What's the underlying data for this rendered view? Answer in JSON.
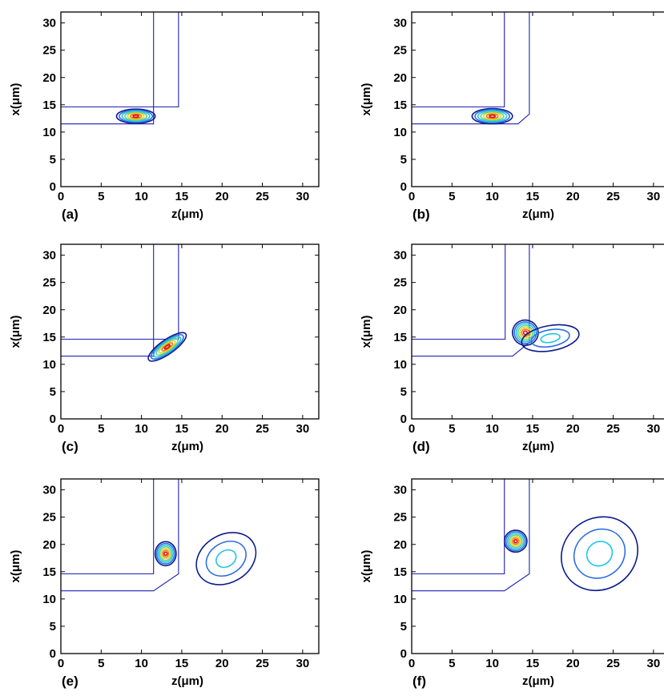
{
  "chart_data": {
    "type": "contour",
    "colors": {
      "guide": "#1f1fb0",
      "levels": [
        "#0b1a8c",
        "#2e6fe0",
        "#1fc6e6",
        "#5fd08a",
        "#e6d22a",
        "#f07818",
        "#d81010",
        "#7a0000"
      ]
    },
    "shared": {
      "xlabel": "z(μm)",
      "ylabel": "x(μm)",
      "xlim": [
        0,
        32
      ],
      "ylim": [
        0,
        32
      ],
      "xticks": [
        "0",
        "5",
        "10",
        "15",
        "20",
        "25",
        "30"
      ],
      "yticks": [
        "0",
        "5",
        "10",
        "15",
        "20",
        "25",
        "30"
      ]
    },
    "panels": [
      {
        "label": "(a)",
        "guide_inner": [
          [
            0,
            11.5
          ],
          [
            11.5,
            11.5
          ],
          [
            11.5,
            32
          ]
        ],
        "guide_outer": [
          [
            0,
            14.6
          ],
          [
            14.6,
            14.6
          ],
          [
            14.6,
            32
          ]
        ],
        "blobs": [
          {
            "center": [
              9.3,
              12.9
            ],
            "rx": 2.4,
            "ry": 1.3,
            "rot": 0,
            "levels": 7
          }
        ]
      },
      {
        "label": "(b)",
        "guide_inner": [
          [
            0,
            11.5
          ],
          [
            13.2,
            11.5
          ],
          [
            14.6,
            13.3
          ],
          [
            14.6,
            32
          ]
        ],
        "guide_outer": [
          [
            0,
            14.6
          ],
          [
            11.5,
            14.6
          ],
          [
            11.5,
            32
          ]
        ],
        "blobs": [
          {
            "center": [
              10.0,
              12.9
            ],
            "rx": 2.5,
            "ry": 1.4,
            "rot": 0,
            "levels": 7
          }
        ]
      },
      {
        "label": "(c)",
        "guide_inner": [
          [
            0,
            11.5
          ],
          [
            11.5,
            11.5
          ],
          [
            11.5,
            32
          ]
        ],
        "guide_outer": [
          [
            0,
            14.6
          ],
          [
            14.6,
            14.6
          ],
          [
            14.6,
            32
          ]
        ],
        "blobs": [
          {
            "center": [
              13.2,
              13.2
            ],
            "rx": 2.8,
            "ry": 1.3,
            "rot": -35,
            "levels": 7
          }
        ]
      },
      {
        "label": "(d)",
        "guide_inner": [
          [
            0,
            11.5
          ],
          [
            12.5,
            11.5
          ],
          [
            14.6,
            14.0
          ],
          [
            14.6,
            32
          ]
        ],
        "guide_outer": [
          [
            0,
            14.6
          ],
          [
            11.6,
            14.6
          ],
          [
            11.6,
            32
          ]
        ],
        "blobs": [
          {
            "center": [
              14.1,
              15.8
            ],
            "rx": 1.6,
            "ry": 2.3,
            "rot": 20,
            "levels": 7
          },
          {
            "center": [
              17.2,
              14.8
            ],
            "rx": 3.6,
            "ry": 2.3,
            "rot": -10,
            "levels": 3
          }
        ]
      },
      {
        "label": "(e)",
        "guide_inner": [
          [
            0,
            11.5
          ],
          [
            11.5,
            11.5
          ],
          [
            14.6,
            14.6
          ],
          [
            14.6,
            32
          ]
        ],
        "guide_outer": [
          [
            0,
            14.6
          ],
          [
            11.5,
            14.6
          ],
          [
            11.5,
            32
          ]
        ],
        "blobs": [
          {
            "center": [
              13.0,
              18.3
            ],
            "rx": 1.3,
            "ry": 2.2,
            "rot": 0,
            "levels": 7
          },
          {
            "center": [
              20.5,
              17.4
            ],
            "rx": 3.9,
            "ry": 4.4,
            "rot": -30,
            "levels": 3
          }
        ]
      },
      {
        "label": "(f)",
        "guide_inner": [
          [
            0,
            11.5
          ],
          [
            11.5,
            11.5
          ],
          [
            14.6,
            14.6
          ],
          [
            14.6,
            32
          ]
        ],
        "guide_outer": [
          [
            0,
            14.6
          ],
          [
            11.5,
            14.6
          ],
          [
            11.5,
            32
          ]
        ],
        "blobs": [
          {
            "center": [
              12.9,
              20.6
            ],
            "rx": 1.4,
            "ry": 2.0,
            "rot": 0,
            "levels": 7
          },
          {
            "center": [
              23.3,
              18.3
            ],
            "rx": 4.9,
            "ry": 6.5,
            "rot": -35,
            "levels": 3
          }
        ]
      }
    ]
  }
}
